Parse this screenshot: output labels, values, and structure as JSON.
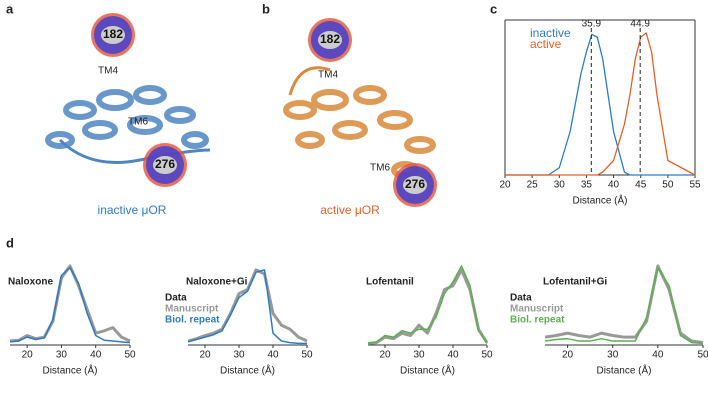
{
  "panels": [
    {
      "label": "a",
      "sites": [
        "182",
        "276"
      ],
      "helices": [
        "TM4",
        "TM6"
      ],
      "caption": "inactive μOR"
    },
    {
      "label": "b",
      "sites": [
        "182",
        "276"
      ],
      "helices": [
        "TM4",
        "TM6"
      ],
      "caption": "active μOR"
    },
    {
      "label": "c"
    },
    {
      "label": "d"
    }
  ],
  "chart_data": [
    {
      "type": "line",
      "xlabel": "Distance (Å)",
      "legend": "top-left",
      "x": [
        20,
        25,
        28,
        30,
        32,
        34,
        35,
        36,
        37,
        38,
        40,
        42,
        43,
        44,
        45,
        46,
        47,
        48,
        50,
        55
      ],
      "series": [
        {
          "name": "inactive",
          "color": "#2f7bbf",
          "values": [
            0,
            0,
            0,
            0.05,
            0.3,
            0.7,
            0.85,
            0.97,
            0.95,
            0.8,
            0.3,
            0.02,
            0,
            0,
            0,
            0,
            0,
            0,
            0,
            0
          ]
        },
        {
          "name": "active",
          "color": "#e0622a",
          "values": [
            0,
            0,
            0,
            0,
            0,
            0,
            0,
            0,
            0,
            0.02,
            0.1,
            0.35,
            0.55,
            0.8,
            0.95,
            0.98,
            0.85,
            0.55,
            0.1,
            0
          ]
        }
      ],
      "markers": [
        35.9,
        44.9
      ],
      "xlim": [
        20,
        55
      ],
      "xticks": [
        20,
        25,
        30,
        35,
        40,
        45,
        50,
        55
      ],
      "ylim": [
        0,
        1
      ]
    },
    {
      "type": "line",
      "title": "Naloxone",
      "xlabel": "Distance (Å)",
      "legend_title": "Data",
      "x": [
        15,
        17.5,
        20,
        22.5,
        25,
        27.5,
        30,
        32.5,
        35,
        37.5,
        40,
        42.5,
        45,
        47.5,
        50
      ],
      "series": [
        {
          "name": "Manuscript",
          "color": "#999999",
          "values": [
            0.05,
            0.06,
            0.12,
            0.08,
            0.1,
            0.3,
            0.85,
            1.0,
            0.75,
            0.45,
            0.15,
            0.18,
            0.22,
            0.1,
            0.05
          ]
        },
        {
          "name": "Biol. repeat",
          "color": "#2f7bbf",
          "values": [
            0.04,
            0.05,
            0.1,
            0.07,
            0.09,
            0.32,
            0.88,
            0.98,
            0.78,
            0.4,
            0.12,
            0.06,
            0.05,
            0.04,
            0.03
          ]
        }
      ],
      "xlim": [
        15,
        50
      ],
      "xticks": [
        20,
        30,
        40,
        50
      ],
      "ylim": [
        0,
        1.05
      ]
    },
    {
      "type": "line",
      "title": "Naloxone+Gi",
      "xlabel": "Distance (Å)",
      "x": [
        15,
        17.5,
        20,
        22.5,
        25,
        27.5,
        30,
        32.5,
        35,
        37.5,
        40,
        42.5,
        45,
        47.5,
        50
      ],
      "series": [
        {
          "color": "#999999",
          "values": [
            0.05,
            0.08,
            0.12,
            0.15,
            0.2,
            0.4,
            0.65,
            0.7,
            0.95,
            0.9,
            0.4,
            0.25,
            0.2,
            0.1,
            0.05
          ]
        },
        {
          "color": "#2f7bbf",
          "values": [
            0.04,
            0.07,
            0.1,
            0.13,
            0.18,
            0.38,
            0.6,
            0.68,
            0.92,
            0.95,
            0.15,
            0.05,
            0.03,
            0.02,
            0.02
          ]
        }
      ],
      "xlim": [
        15,
        50
      ],
      "xticks": [
        20,
        30,
        40,
        50
      ],
      "ylim": [
        0,
        1.05
      ]
    },
    {
      "type": "line",
      "title": "Lofentanil",
      "xlabel": "Distance (Å)",
      "legend_title": "Data",
      "x": [
        15,
        17.5,
        20,
        22.5,
        25,
        27.5,
        30,
        32.5,
        35,
        37.5,
        40,
        42.5,
        45,
        47.5,
        50
      ],
      "series": [
        {
          "name": "Manuscript",
          "color": "#999999",
          "values": [
            0.02,
            0.03,
            0.1,
            0.08,
            0.15,
            0.12,
            0.25,
            0.15,
            0.4,
            0.7,
            0.75,
            0.95,
            0.7,
            0.2,
            0.03
          ]
        },
        {
          "name": "Biol. repeat",
          "color": "#5cb04f",
          "values": [
            0.02,
            0.04,
            0.12,
            0.1,
            0.18,
            0.15,
            0.2,
            0.2,
            0.35,
            0.65,
            0.8,
            1.0,
            0.75,
            0.18,
            0.02
          ]
        }
      ],
      "xlim": [
        15,
        50
      ],
      "xticks": [
        20,
        30,
        40,
        50
      ],
      "ylim": [
        0,
        1.05
      ]
    },
    {
      "type": "line",
      "title": "Lofentanil+Gi",
      "xlabel": "Distance (Å)",
      "x": [
        15,
        17.5,
        20,
        22.5,
        25,
        27.5,
        30,
        32.5,
        35,
        37.5,
        40,
        42.5,
        45,
        47.5,
        50
      ],
      "series": [
        {
          "color": "#999999",
          "values": [
            0.1,
            0.12,
            0.15,
            0.12,
            0.1,
            0.15,
            0.12,
            0.1,
            0.1,
            0.3,
            1.0,
            0.7,
            0.15,
            0.05,
            0.03
          ]
        },
        {
          "color": "#5cb04f",
          "values": [
            0.05,
            0.07,
            0.08,
            0.05,
            0.05,
            0.08,
            0.05,
            0.05,
            0.05,
            0.35,
            0.98,
            0.75,
            0.12,
            0.03,
            0.02
          ]
        }
      ],
      "xlim": [
        15,
        50
      ],
      "xticks": [
        20,
        30,
        40,
        50
      ],
      "ylim": [
        0,
        1.05
      ]
    }
  ]
}
